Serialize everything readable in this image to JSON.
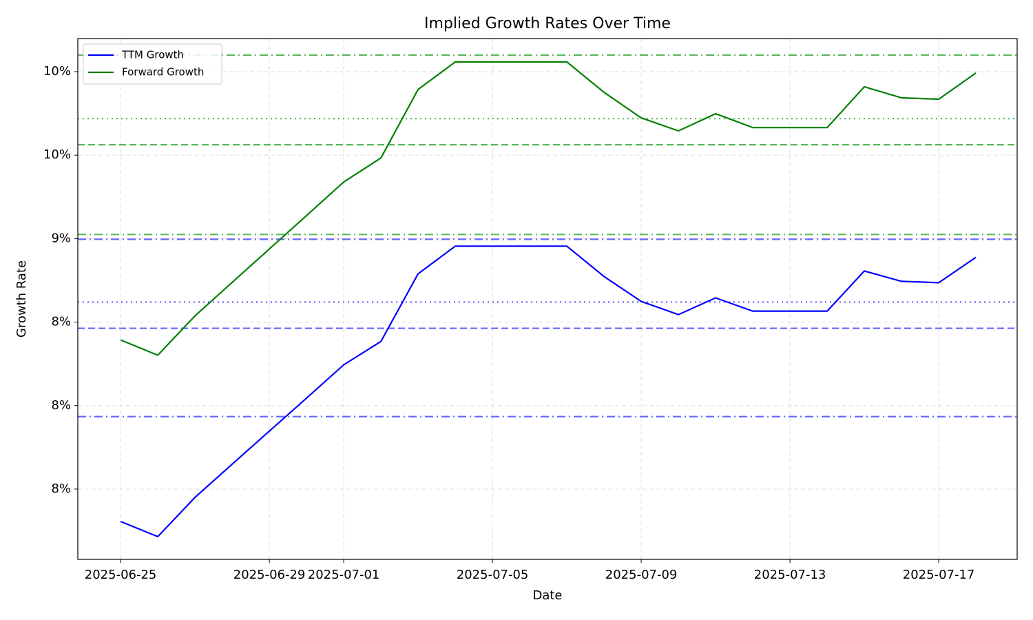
{
  "chart_data": {
    "type": "line",
    "title": "Implied Growth Rates Over Time",
    "xlabel": "Date",
    "ylabel": "Growth Rate",
    "x": [
      "2025-06-25",
      "2025-06-26",
      "2025-06-27",
      "2025-06-28",
      "2025-06-29",
      "2025-06-30",
      "2025-07-01",
      "2025-07-02",
      "2025-07-03",
      "2025-07-04",
      "2025-07-05",
      "2025-07-06",
      "2025-07-07",
      "2025-07-08",
      "2025-07-09",
      "2025-07-10",
      "2025-07-11",
      "2025-07-12",
      "2025-07-13",
      "2025-07-14",
      "2025-07-15",
      "2025-07-16",
      "2025-07-17",
      "2025-07-18"
    ],
    "series": [
      {
        "name": "TTM Growth",
        "color": "#0000ff",
        "values": [
          7.306,
          7.215,
          7.45,
          7.649,
          7.847,
          8.045,
          8.244,
          8.384,
          8.789,
          8.955,
          8.955,
          8.955,
          8.955,
          8.773,
          8.624,
          8.545,
          8.645,
          8.566,
          8.566,
          8.566,
          8.806,
          8.744,
          8.736,
          8.888
        ]
      },
      {
        "name": "Forward Growth",
        "color": "#008000",
        "values": [
          8.393,
          8.302,
          8.537,
          8.738,
          8.938,
          9.138,
          9.339,
          9.483,
          9.893,
          10.058,
          10.058,
          10.058,
          10.058,
          9.876,
          9.723,
          9.645,
          9.748,
          9.665,
          9.665,
          9.665,
          9.909,
          9.843,
          9.835,
          9.992
        ]
      }
    ],
    "reference_lines": [
      {
        "value": 10.099,
        "color": "#5cb85c",
        "style": "dashdot"
      },
      {
        "value": 9.719,
        "color": "#5cb85c",
        "style": "dotted"
      },
      {
        "value": 9.562,
        "color": "#5cb85c",
        "style": "dashed"
      },
      {
        "value": 9.025,
        "color": "#5cb85c",
        "style": "dashdot"
      },
      {
        "value": 8.996,
        "color": "#6666ff",
        "style": "dashdot"
      },
      {
        "value": 8.62,
        "color": "#6666ff",
        "style": "dotted"
      },
      {
        "value": 8.463,
        "color": "#6666ff",
        "style": "dashed"
      },
      {
        "value": 7.934,
        "color": "#6666ff",
        "style": "dashdot"
      }
    ],
    "xlim": [
      "2025-06-23T20:24",
      "2025-07-19T02:38"
    ],
    "xticks": [
      "2025-06-25",
      "2025-06-29",
      "2025-07-01",
      "2025-07-05",
      "2025-07-09",
      "2025-07-13",
      "2025-07-17"
    ],
    "ylim": [
      7.079,
      10.198
    ],
    "yticks": [
      {
        "value": 7.5,
        "label": "8%"
      },
      {
        "value": 8,
        "label": "8%"
      },
      {
        "value": 8.5,
        "label": "8%"
      },
      {
        "value": 9,
        "label": "9%"
      },
      {
        "value": 9.5,
        "label": "10%"
      },
      {
        "value": 10,
        "label": "10%"
      }
    ],
    "grid": true,
    "legend": "upper left"
  }
}
